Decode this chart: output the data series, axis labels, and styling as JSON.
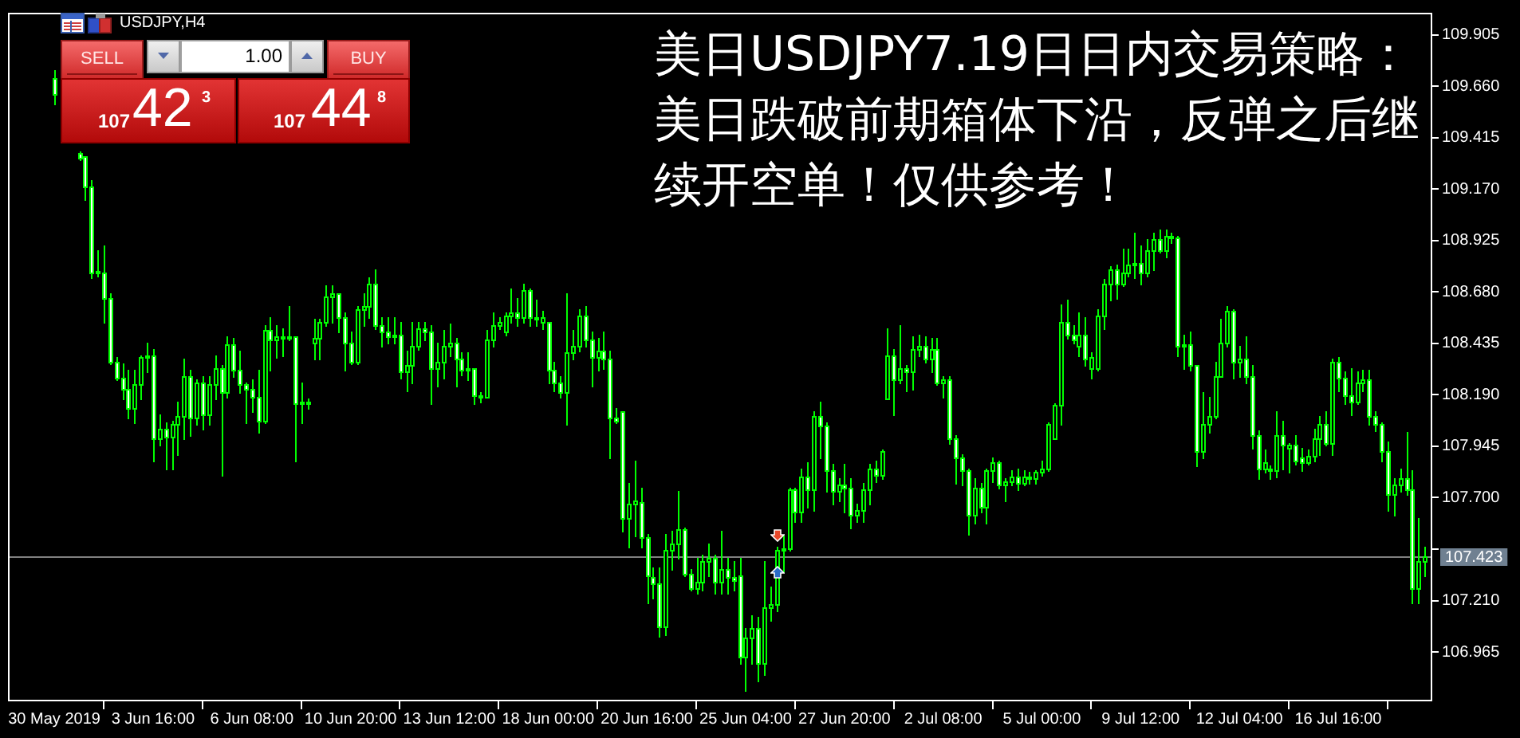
{
  "chart_data": {
    "type": "candlestick",
    "title": "美日USDJPY7.19日日内交易策略：美日跌破前期箱体下沿，反弹之后继续开空单！仅供参考！",
    "subtitle": "USDJPY,H4",
    "categories": [
      "30 May 2019",
      null,
      null,
      null,
      null,
      null,
      null,
      null,
      null,
      null,
      null,
      null,
      null,
      null,
      null,
      null,
      "3 Jun 16:00",
      null,
      null,
      null,
      null,
      null,
      null,
      null,
      null,
      null,
      null,
      null,
      null,
      null,
      null,
      null,
      "6 Jun 08:00",
      null,
      null,
      null,
      null,
      null,
      null,
      null,
      null,
      null,
      null,
      null,
      null,
      null,
      null,
      null,
      "10 Jun 20:00",
      null,
      null,
      null,
      null,
      null,
      null,
      null,
      null,
      null,
      null,
      null,
      null,
      null,
      null,
      null,
      "13 Jun 12:00",
      null,
      null,
      null,
      null,
      null,
      null,
      null,
      null,
      null,
      null,
      null,
      null,
      null,
      null,
      null,
      "18 Jun 00:00",
      null,
      null,
      null,
      null,
      null,
      null,
      null,
      null,
      null,
      null,
      null,
      null,
      null,
      null,
      null,
      "20 Jun 16:00",
      null,
      null,
      null,
      null,
      null,
      null,
      null,
      null,
      null,
      null,
      null,
      null,
      null,
      null,
      null,
      "25 Jun 04:00",
      null,
      null,
      null,
      null,
      null,
      null,
      null,
      null,
      null,
      null,
      null,
      null,
      null,
      null,
      null,
      "27 Jun 20:00",
      null,
      null,
      null,
      null,
      null,
      null,
      null,
      null,
      null,
      null,
      null,
      null,
      null,
      null,
      null,
      "2 Jul 08:00",
      null,
      null,
      null,
      null,
      null,
      null,
      null,
      null,
      null,
      null,
      null,
      null,
      null,
      null,
      null,
      "5 Jul 00:00",
      null,
      null,
      null,
      null,
      null,
      null,
      null,
      null,
      null,
      null,
      null,
      null,
      null,
      null,
      null,
      "9 Jul 12:00",
      null,
      null,
      null,
      null,
      null,
      null,
      null,
      null,
      null,
      null,
      null,
      null,
      null,
      null,
      null,
      "12 Jul 04:00",
      null,
      null,
      null,
      null,
      null,
      null,
      null,
      null,
      null,
      null,
      null,
      null,
      null,
      null,
      null,
      "16 Jul 16:00",
      null,
      null,
      null,
      null,
      null,
      null,
      null,
      null,
      null,
      null,
      null,
      null,
      null,
      null
    ],
    "ohlc": [
      [
        109.7,
        109.74,
        109.58,
        109.62
      ],
      null,
      null,
      null,
      [
        109.34,
        109.35,
        109.31,
        109.32
      ],
      [
        109.33,
        109.33,
        109.12,
        109.18
      ],
      [
        109.18,
        109.21,
        108.75,
        108.77
      ],
      [
        108.77,
        108.88,
        108.76,
        108.78
      ],
      [
        108.77,
        108.9,
        108.54,
        108.65
      ],
      [
        108.65,
        108.67,
        108.34,
        108.35
      ],
      [
        108.35,
        108.37,
        108.26,
        108.27
      ],
      [
        108.27,
        108.34,
        108.17,
        108.22
      ],
      [
        108.22,
        108.31,
        108.08,
        108.13
      ],
      [
        108.13,
        108.31,
        108.06,
        108.24
      ],
      [
        108.24,
        108.38,
        108.17,
        108.37
      ],
      [
        108.37,
        108.44,
        108.3,
        108.38
      ],
      [
        108.38,
        108.41,
        107.88,
        107.98
      ],
      [
        107.98,
        108.1,
        107.95,
        108.03
      ],
      [
        108.03,
        108.06,
        107.84,
        107.99
      ],
      [
        107.99,
        108.07,
        107.84,
        108.05
      ],
      [
        108.05,
        108.16,
        107.91,
        108.09
      ],
      [
        108.09,
        108.36,
        107.98,
        108.28
      ],
      [
        108.28,
        108.31,
        108.0,
        108.08
      ],
      [
        108.08,
        108.26,
        108.05,
        108.25
      ],
      [
        108.25,
        108.28,
        108.03,
        108.1
      ],
      [
        108.1,
        108.28,
        108.05,
        108.24
      ],
      [
        108.24,
        108.38,
        108.17,
        108.32
      ],
      [
        108.32,
        108.33,
        107.81,
        108.2
      ],
      [
        108.2,
        108.47,
        108.18,
        108.43
      ],
      [
        108.43,
        108.46,
        108.28,
        108.31
      ],
      [
        108.31,
        108.4,
        108.2,
        108.24
      ],
      [
        108.24,
        108.25,
        108.06,
        108.22
      ],
      [
        108.22,
        108.26,
        108.11,
        108.18
      ],
      [
        108.18,
        108.31,
        108.01,
        108.07
      ],
      [
        108.07,
        108.52,
        108.06,
        108.5
      ],
      [
        108.5,
        108.56,
        108.31,
        108.45
      ],
      [
        108.45,
        108.52,
        108.37,
        108.47
      ],
      [
        108.47,
        108.51,
        108.38,
        108.46
      ],
      [
        108.46,
        108.61,
        108.45,
        108.47
      ],
      [
        108.47,
        108.47,
        107.88,
        108.15
      ],
      [
        108.15,
        108.25,
        108.06,
        108.16
      ],
      [
        108.16,
        108.17,
        108.13,
        108.15
      ],
      [
        108.44,
        108.55,
        108.36,
        108.46
      ],
      [
        108.46,
        108.55,
        108.36,
        108.54
      ],
      [
        108.54,
        108.71,
        108.52,
        108.66
      ],
      [
        108.66,
        108.71,
        108.54,
        108.67
      ],
      [
        108.67,
        108.67,
        108.49,
        108.56
      ],
      [
        108.56,
        108.58,
        108.31,
        108.44
      ],
      [
        108.44,
        108.49,
        108.34,
        108.35
      ],
      [
        108.35,
        108.61,
        108.34,
        108.6
      ],
      [
        108.6,
        108.67,
        108.52,
        108.61
      ],
      [
        108.61,
        108.75,
        108.56,
        108.72
      ],
      [
        108.72,
        108.79,
        108.51,
        108.52
      ],
      [
        108.52,
        108.56,
        108.42,
        108.49
      ],
      [
        108.49,
        108.56,
        108.44,
        108.47
      ],
      [
        108.47,
        108.56,
        108.44,
        108.48
      ],
      [
        108.48,
        108.54,
        108.27,
        108.3
      ],
      [
        108.3,
        108.4,
        108.21,
        108.33
      ],
      [
        108.33,
        108.54,
        108.25,
        108.42
      ],
      [
        108.42,
        108.54,
        108.41,
        108.51
      ],
      [
        108.51,
        108.54,
        108.45,
        108.49
      ],
      [
        108.49,
        108.52,
        108.15,
        108.32
      ],
      [
        108.32,
        108.44,
        108.23,
        108.35
      ],
      [
        108.35,
        108.5,
        108.27,
        108.42
      ],
      [
        108.42,
        108.53,
        108.38,
        108.44
      ],
      [
        108.44,
        108.46,
        108.23,
        108.36
      ],
      [
        108.36,
        108.39,
        108.29,
        108.31
      ],
      [
        108.31,
        108.39,
        108.26,
        108.32
      ],
      [
        108.32,
        108.32,
        108.15,
        108.19
      ],
      [
        108.19,
        108.2,
        108.16,
        108.18
      ],
      [
        108.18,
        108.5,
        108.18,
        108.45
      ],
      [
        108.45,
        108.58,
        108.42,
        108.52
      ],
      [
        108.52,
        108.56,
        108.51,
        108.54
      ],
      [
        108.49,
        108.58,
        108.48,
        108.57
      ],
      [
        108.57,
        108.7,
        108.54,
        108.58
      ],
      [
        108.58,
        108.65,
        108.52,
        108.56
      ],
      [
        108.56,
        108.72,
        108.54,
        108.69
      ],
      [
        108.69,
        108.7,
        108.52,
        108.56
      ],
      [
        108.56,
        108.64,
        108.52,
        108.55
      ],
      [
        108.54,
        108.59,
        108.51,
        108.56
      ],
      [
        108.54,
        108.54,
        108.25,
        108.31
      ],
      [
        108.31,
        108.35,
        108.21,
        108.25
      ],
      [
        108.25,
        108.28,
        108.18,
        108.2
      ],
      [
        108.2,
        108.67,
        108.05,
        108.39
      ],
      [
        108.39,
        108.5,
        108.36,
        108.42
      ],
      [
        108.42,
        108.6,
        108.4,
        108.57
      ],
      [
        108.57,
        108.61,
        108.42,
        108.45
      ],
      [
        108.45,
        108.49,
        108.23,
        108.37
      ],
      [
        108.37,
        108.46,
        108.31,
        108.4
      ],
      [
        108.4,
        108.49,
        108.32,
        108.36
      ],
      [
        108.36,
        108.4,
        107.89,
        108.08
      ],
      [
        108.08,
        108.13,
        108.06,
        108.07
      ],
      [
        108.11,
        108.11,
        107.54,
        107.6
      ],
      [
        107.6,
        107.77,
        107.47,
        107.67
      ],
      [
        107.67,
        107.88,
        107.52,
        107.69
      ],
      [
        107.68,
        107.75,
        107.47,
        107.51
      ],
      [
        107.51,
        107.53,
        107.2,
        107.33
      ],
      [
        107.32,
        107.37,
        107.22,
        107.29
      ],
      [
        107.29,
        107.37,
        107.04,
        107.09
      ],
      [
        107.09,
        107.53,
        107.05,
        107.45
      ],
      [
        107.45,
        107.54,
        107.36,
        107.48
      ],
      [
        107.48,
        107.73,
        107.41,
        107.55
      ],
      [
        107.55,
        107.56,
        107.33,
        107.34
      ],
      [
        107.34,
        107.36,
        107.26,
        107.27
      ],
      [
        107.27,
        107.41,
        107.25,
        107.3
      ],
      [
        107.3,
        107.43,
        107.26,
        107.4
      ],
      [
        107.4,
        107.48,
        107.33,
        107.41
      ],
      [
        107.41,
        107.43,
        107.25,
        107.3
      ],
      [
        107.3,
        107.54,
        107.25,
        107.36
      ],
      [
        107.36,
        107.41,
        107.25,
        107.32
      ],
      [
        107.32,
        107.4,
        107.26,
        107.31
      ],
      [
        107.33,
        107.41,
        106.91,
        106.94
      ],
      [
        106.94,
        107.08,
        106.78,
        107.03
      ],
      [
        107.03,
        107.14,
        106.91,
        107.08
      ],
      [
        107.08,
        107.13,
        106.83,
        106.91
      ],
      [
        106.91,
        107.4,
        106.86,
        107.18
      ],
      [
        107.18,
        107.28,
        107.12,
        107.19
      ],
      [
        107.19,
        107.47,
        107.16,
        107.45
      ],
      [
        107.45,
        107.52,
        107.35,
        107.46
      ],
      [
        107.46,
        107.75,
        107.45,
        107.74
      ],
      [
        107.74,
        107.75,
        107.59,
        107.63
      ],
      [
        107.63,
        107.84,
        107.59,
        107.8
      ],
      [
        107.8,
        107.87,
        107.66,
        107.74
      ],
      [
        107.74,
        108.11,
        107.64,
        108.09
      ],
      [
        108.09,
        108.16,
        107.89,
        108.04
      ],
      [
        108.04,
        108.06,
        107.73,
        107.83
      ],
      [
        107.83,
        107.86,
        107.67,
        107.73
      ],
      [
        107.73,
        107.79,
        107.69,
        107.76
      ],
      [
        107.76,
        107.86,
        107.63,
        107.75
      ],
      [
        107.75,
        107.79,
        107.56,
        107.62
      ],
      [
        107.62,
        107.67,
        107.59,
        107.64
      ],
      [
        107.64,
        107.77,
        107.59,
        107.74
      ],
      [
        107.74,
        107.86,
        107.67,
        107.84
      ],
      [
        107.84,
        107.88,
        107.78,
        107.81
      ],
      [
        107.81,
        107.93,
        107.79,
        107.92
      ],
      [
        108.17,
        108.51,
        108.17,
        108.38
      ],
      [
        108.38,
        108.41,
        108.1,
        108.26
      ],
      [
        108.26,
        108.52,
        108.25,
        108.32
      ],
      [
        108.32,
        108.33,
        108.21,
        108.3
      ],
      [
        108.3,
        108.47,
        108.22,
        108.41
      ],
      [
        108.41,
        108.48,
        108.38,
        108.42
      ],
      [
        108.42,
        108.47,
        108.35,
        108.36
      ],
      [
        108.36,
        108.46,
        108.3,
        108.41
      ],
      [
        108.41,
        108.46,
        108.24,
        108.25
      ],
      [
        108.25,
        108.28,
        108.18,
        108.26
      ],
      [
        108.26,
        108.28,
        107.96,
        107.98
      ],
      [
        107.98,
        108.0,
        107.77,
        107.89
      ],
      [
        107.89,
        107.91,
        107.76,
        107.83
      ],
      [
        107.83,
        107.84,
        107.53,
        107.62
      ],
      [
        107.62,
        107.79,
        107.58,
        107.75
      ],
      [
        107.75,
        107.77,
        107.63,
        107.66
      ],
      [
        107.66,
        107.84,
        107.58,
        107.83
      ],
      [
        107.83,
        107.89,
        107.78,
        107.87
      ],
      [
        107.87,
        107.88,
        107.75,
        107.76
      ],
      [
        107.76,
        107.79,
        107.69,
        107.78
      ],
      [
        107.78,
        107.83,
        107.76,
        107.8
      ],
      [
        107.8,
        107.84,
        107.74,
        107.77
      ],
      [
        107.77,
        107.83,
        107.76,
        107.8
      ],
      [
        107.8,
        107.82,
        107.77,
        107.79
      ],
      [
        107.79,
        107.83,
        107.77,
        107.82
      ],
      [
        107.82,
        107.88,
        107.81,
        107.84
      ],
      [
        107.84,
        108.06,
        107.83,
        108.05
      ],
      [
        107.98,
        108.15,
        107.98,
        108.14
      ],
      [
        108.14,
        108.62,
        108.05,
        108.54
      ],
      [
        108.54,
        108.64,
        108.46,
        108.48
      ],
      [
        108.48,
        108.52,
        108.44,
        108.45
      ],
      [
        108.42,
        108.58,
        108.38,
        108.48
      ],
      [
        108.48,
        108.56,
        108.33,
        108.36
      ],
      [
        108.32,
        108.39,
        108.27,
        108.37
      ],
      [
        108.32,
        108.6,
        108.31,
        108.57
      ],
      [
        108.57,
        108.74,
        108.51,
        108.72
      ],
      [
        108.72,
        108.8,
        108.64,
        108.79
      ],
      [
        108.79,
        108.81,
        108.65,
        108.72
      ],
      [
        108.72,
        108.89,
        108.71,
        108.77
      ],
      [
        108.77,
        108.89,
        108.76,
        108.81
      ],
      [
        108.81,
        108.96,
        108.75,
        108.82
      ],
      [
        108.82,
        108.9,
        108.72,
        108.77
      ],
      [
        108.77,
        108.93,
        108.76,
        108.88
      ],
      [
        108.88,
        108.96,
        108.79,
        108.93
      ],
      [
        108.93,
        108.98,
        108.87,
        108.88
      ],
      [
        108.88,
        108.98,
        108.85,
        108.95
      ],
      [
        108.95,
        108.96,
        108.92,
        108.94
      ],
      [
        108.94,
        108.95,
        108.38,
        108.42
      ],
      [
        108.42,
        108.48,
        108.32,
        108.43
      ],
      [
        108.43,
        108.49,
        108.31,
        108.33
      ],
      [
        108.33,
        108.33,
        107.85,
        107.92
      ],
      [
        107.92,
        108.2,
        107.89,
        108.05
      ],
      [
        108.05,
        108.18,
        108.01,
        108.09
      ],
      [
        108.09,
        108.35,
        108.08,
        108.28
      ],
      [
        108.28,
        108.55,
        108.28,
        108.44
      ],
      [
        108.44,
        108.61,
        108.42,
        108.59
      ],
      [
        108.59,
        108.6,
        108.27,
        108.35
      ],
      [
        108.35,
        108.42,
        108.28,
        108.36
      ],
      [
        108.36,
        108.47,
        108.25,
        108.28
      ],
      [
        108.28,
        108.33,
        107.94,
        108.0
      ],
      [
        108.0,
        108.02,
        107.79,
        107.84
      ],
      [
        107.84,
        107.93,
        107.82,
        107.87
      ],
      [
        107.84,
        107.85,
        107.79,
        107.83
      ],
      [
        107.83,
        108.11,
        107.8,
        108.0
      ],
      [
        108.0,
        108.07,
        107.84,
        107.95
      ],
      [
        107.94,
        107.96,
        107.82,
        107.95
      ],
      [
        107.95,
        108.0,
        107.86,
        107.88
      ],
      [
        107.89,
        107.94,
        107.83,
        107.87
      ],
      [
        107.87,
        107.93,
        107.86,
        107.9
      ],
      [
        107.9,
        108.03,
        107.88,
        107.98
      ],
      [
        107.98,
        108.09,
        107.91,
        108.05
      ],
      [
        108.05,
        108.11,
        107.95,
        107.96
      ],
      [
        107.96,
        108.36,
        107.91,
        108.35
      ],
      [
        108.35,
        108.37,
        108.21,
        108.27
      ],
      [
        108.27,
        108.3,
        108.15,
        108.19
      ],
      [
        108.19,
        108.32,
        108.1,
        108.16
      ],
      [
        108.16,
        108.3,
        108.15,
        108.25
      ],
      [
        108.25,
        108.31,
        108.21,
        108.26
      ],
      [
        108.26,
        108.31,
        108.05,
        108.09
      ],
      [
        108.09,
        108.11,
        108.02,
        108.05
      ],
      [
        108.05,
        108.06,
        107.88,
        107.92
      ],
      [
        107.92,
        107.97,
        107.64,
        107.72
      ],
      [
        107.72,
        107.79,
        107.62,
        107.76
      ],
      [
        107.76,
        107.84,
        107.73,
        107.79
      ],
      [
        107.79,
        108.01,
        107.72,
        107.74
      ],
      [
        107.74,
        107.83,
        107.2,
        107.27
      ],
      [
        107.27,
        107.6,
        107.2,
        107.4
      ],
      [
        107.4,
        107.47,
        107.33,
        107.423
      ]
    ],
    "color": "#00ff00",
    "ylim": [
      106.73,
      110.01
    ],
    "yticks": [
      109.905,
      {
        "value": 109.66,
        "label": "109.660"
      },
      109.415,
      {
        "value": 109.17,
        "label": "109.170"
      },
      108.925,
      {
        "value": 108.68,
        "label": "108.680"
      },
      108.435,
      {
        "value": 108.19,
        "label": "108.190"
      },
      107.945,
      {
        "value": 107.7,
        "label": "107.700"
      },
      {
        "value": 107.455,
        "label": null
      },
      {
        "value": 107.21,
        "label": "107.210"
      },
      106.965
    ],
    "ref_lines": [
      {
        "axis": "y",
        "value": 107.423,
        "label": "107.423",
        "color": "#808080"
      }
    ],
    "annotations": [
      "SELL",
      "1.00",
      "BUY",
      "107",
      "42",
      "3",
      "107",
      "44",
      "8"
    ]
  }
}
